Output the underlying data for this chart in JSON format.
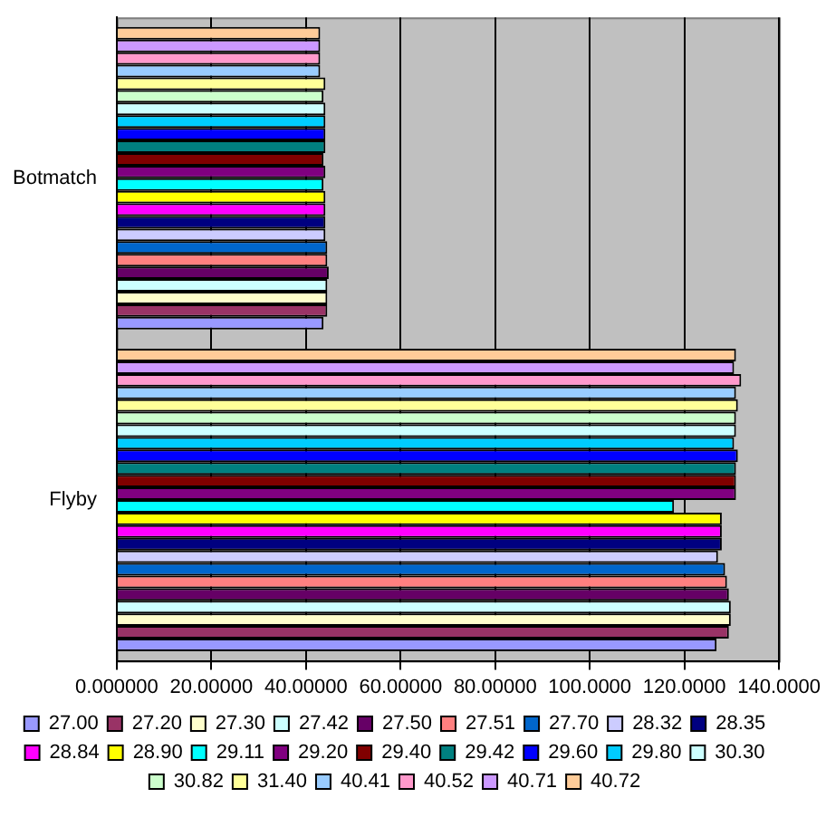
{
  "chart_data": {
    "type": "bar",
    "orientation": "horizontal",
    "categories": [
      "Botmatch",
      "Flyby"
    ],
    "xlim": [
      0,
      140
    ],
    "xticks": [
      {
        "value": 0,
        "label": "0.000000"
      },
      {
        "value": 20,
        "label": "20.00000"
      },
      {
        "value": 40,
        "label": "40.00000"
      },
      {
        "value": 60,
        "label": "60.00000"
      },
      {
        "value": 80,
        "label": "80.00000"
      },
      {
        "value": 100,
        "label": "100.0000"
      },
      {
        "value": 120,
        "label": "120.0000"
      },
      {
        "value": 140,
        "label": "140.0000"
      }
    ],
    "grid": "x",
    "legend": "bottom",
    "series": [
      {
        "name": "27.00",
        "color": "#9999ff",
        "values": [
          43.7,
          126.8
        ]
      },
      {
        "name": "27.20",
        "color": "#993366",
        "values": [
          44.5,
          129.4
        ]
      },
      {
        "name": "27.30",
        "color": "#ffffcc",
        "values": [
          44.5,
          129.8
        ]
      },
      {
        "name": "27.42",
        "color": "#ccffff",
        "values": [
          44.5,
          129.8
        ]
      },
      {
        "name": "27.50",
        "color": "#660066",
        "values": [
          44.8,
          129.4
        ]
      },
      {
        "name": "27.51",
        "color": "#ff8080",
        "values": [
          44.5,
          129.0
        ]
      },
      {
        "name": "27.70",
        "color": "#0066cc",
        "values": [
          44.5,
          128.6
        ]
      },
      {
        "name": "28.32",
        "color": "#ccccff",
        "values": [
          44.1,
          127.1
        ]
      },
      {
        "name": "28.35",
        "color": "#000080",
        "values": [
          44.1,
          127.9
        ]
      },
      {
        "name": "28.84",
        "color": "#ff00ff",
        "values": [
          44.1,
          127.9
        ]
      },
      {
        "name": "28.90",
        "color": "#ffff00",
        "values": [
          44.1,
          127.9
        ]
      },
      {
        "name": "29.11",
        "color": "#00ffff",
        "values": [
          43.7,
          117.8
        ]
      },
      {
        "name": "29.20",
        "color": "#800080",
        "values": [
          44.1,
          130.9
        ]
      },
      {
        "name": "29.40",
        "color": "#800000",
        "values": [
          43.7,
          130.9
        ]
      },
      {
        "name": "29.42",
        "color": "#008080",
        "values": [
          44.1,
          130.9
        ]
      },
      {
        "name": "29.60",
        "color": "#0000ff",
        "values": [
          44.1,
          131.3
        ]
      },
      {
        "name": "29.80",
        "color": "#00ccff",
        "values": [
          44.1,
          130.5
        ]
      },
      {
        "name": "30.30",
        "color": "#ccffff",
        "values": [
          44.1,
          130.9
        ]
      },
      {
        "name": "30.82",
        "color": "#ccffcc",
        "values": [
          43.7,
          130.9
        ]
      },
      {
        "name": "31.40",
        "color": "#ffff99",
        "values": [
          44.1,
          131.3
        ]
      },
      {
        "name": "40.41",
        "color": "#99ccff",
        "values": [
          43.0,
          130.9
        ]
      },
      {
        "name": "40.52",
        "color": "#ff99cc",
        "values": [
          43.0,
          132.0
        ]
      },
      {
        "name": "40.71",
        "color": "#cc99ff",
        "values": [
          43.0,
          130.5
        ]
      },
      {
        "name": "40.72",
        "color": "#ffcc99",
        "values": [
          43.0,
          130.9
        ]
      }
    ]
  }
}
